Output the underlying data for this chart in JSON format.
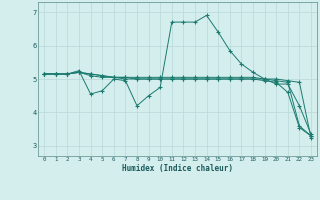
{
  "title": "",
  "xlabel": "Humidex (Indice chaleur)",
  "ylabel": "",
  "bg_color": "#d4eeee",
  "line_color": "#1a7a6e",
  "grid_color": "#b8d8d8",
  "xlim": [
    -0.5,
    23.5
  ],
  "ylim": [
    2.7,
    7.3
  ],
  "xticks": [
    0,
    1,
    2,
    3,
    4,
    5,
    6,
    7,
    8,
    9,
    10,
    11,
    12,
    13,
    14,
    15,
    16,
    17,
    18,
    19,
    20,
    21,
    22,
    23
  ],
  "yticks": [
    3,
    4,
    5,
    6,
    7
  ],
  "series": [
    [
      5.15,
      5.15,
      5.15,
      5.2,
      5.15,
      5.1,
      5.05,
      5.05,
      5.05,
      5.05,
      5.05,
      5.05,
      5.05,
      5.05,
      5.05,
      5.05,
      5.05,
      5.05,
      5.05,
      5.0,
      5.0,
      4.95,
      4.9,
      3.25
    ],
    [
      5.15,
      5.15,
      5.15,
      5.25,
      4.55,
      4.65,
      5.0,
      4.95,
      4.2,
      4.5,
      4.75,
      6.7,
      6.7,
      6.7,
      6.9,
      6.4,
      5.85,
      5.45,
      5.2,
      5.0,
      4.85,
      4.85,
      4.2,
      3.35
    ],
    [
      5.15,
      5.15,
      5.15,
      5.2,
      5.15,
      5.1,
      5.05,
      5.0,
      5.0,
      5.0,
      5.0,
      5.0,
      5.0,
      5.0,
      5.0,
      5.0,
      5.0,
      5.0,
      5.0,
      4.95,
      4.9,
      4.6,
      3.55,
      3.3
    ],
    [
      5.15,
      5.15,
      5.15,
      5.2,
      5.1,
      5.05,
      5.05,
      5.05,
      5.0,
      5.0,
      5.0,
      5.0,
      5.0,
      5.0,
      5.0,
      5.0,
      5.0,
      5.0,
      5.0,
      5.0,
      4.95,
      4.9,
      3.6,
      3.3
    ]
  ]
}
